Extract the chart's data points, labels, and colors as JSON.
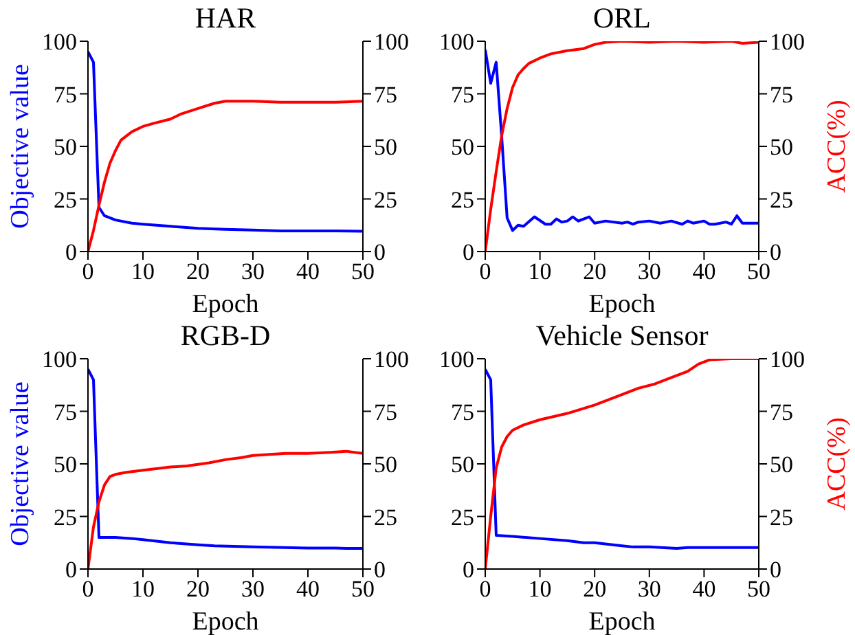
{
  "chart_data": [
    {
      "type": "line",
      "title": "HAR",
      "xlabel": "Epoch",
      "ylabel": "Objective value",
      "xlim": [
        0,
        50
      ],
      "xticks": [
        0,
        10,
        20,
        30,
        40,
        50
      ],
      "ylim": [
        0,
        100
      ],
      "yticks": [
        0,
        25,
        50,
        75,
        100
      ],
      "y2lim": [
        0,
        100
      ],
      "y2ticks": [
        0,
        25,
        50,
        75,
        100
      ],
      "series": [
        {
          "color": "#0000ff",
          "x": [
            0,
            1,
            2,
            3,
            5,
            8,
            10,
            15,
            20,
            25,
            30,
            35,
            40,
            45,
            50
          ],
          "values": [
            95,
            90,
            21,
            17,
            15,
            13.5,
            13,
            12,
            11,
            10.5,
            10.2,
            9.8,
            9.8,
            9.8,
            9.6
          ]
        },
        {
          "color": "#ff0000",
          "axis": "y2",
          "x": [
            0,
            1,
            2,
            3,
            4,
            5,
            6,
            8,
            10,
            12,
            15,
            17,
            20,
            23,
            25,
            30,
            35,
            40,
            45,
            50
          ],
          "values": [
            0,
            10,
            22,
            33,
            42,
            48,
            53,
            57,
            59.5,
            61,
            63,
            65.5,
            68,
            70.5,
            71.5,
            71.5,
            71,
            71,
            71,
            71.5
          ]
        }
      ]
    },
    {
      "type": "line",
      "title": "ORL",
      "xlabel": "Epoch",
      "y2label": "ACC(%)",
      "xlim": [
        0,
        50
      ],
      "xticks": [
        0,
        10,
        20,
        30,
        40,
        50
      ],
      "ylim": [
        0,
        100
      ],
      "yticks": [
        0,
        25,
        50,
        75,
        100
      ],
      "y2lim": [
        0,
        100
      ],
      "y2ticks": [
        0,
        25,
        50,
        75,
        100
      ],
      "series": [
        {
          "color": "#0000ff",
          "x": [
            0,
            1,
            2,
            3,
            4,
            5,
            6,
            7,
            9,
            11,
            12,
            13,
            14,
            15,
            16,
            17,
            19,
            20,
            22,
            25,
            26,
            27,
            28,
            30,
            32,
            34,
            36,
            37,
            38,
            40,
            41,
            42,
            44,
            45,
            46,
            47,
            50
          ],
          "values": [
            96,
            80,
            90,
            55,
            16,
            10,
            12.5,
            12,
            16.5,
            13,
            13,
            15.5,
            14,
            14.5,
            16.5,
            14.5,
            16.5,
            13.5,
            14.5,
            13.5,
            14,
            13,
            14,
            14.5,
            13.5,
            14.5,
            13,
            14.5,
            13.5,
            14.5,
            13,
            13,
            14,
            13,
            17,
            13.5,
            13.5
          ]
        },
        {
          "color": "#ff0000",
          "axis": "y2",
          "x": [
            0,
            1,
            2,
            3,
            4,
            5,
            6,
            7,
            8,
            10,
            12,
            15,
            18,
            20,
            22,
            25,
            30,
            35,
            40,
            45,
            47,
            50
          ],
          "values": [
            0,
            20,
            38,
            55,
            68,
            78,
            84,
            87,
            89.5,
            92,
            94,
            95.5,
            96.5,
            98.5,
            99.5,
            100,
            99.5,
            100,
            99.5,
            100,
            99,
            99.5
          ]
        }
      ]
    },
    {
      "type": "line",
      "title": "RGB-D",
      "xlabel": "Epoch",
      "ylabel": "Objective value",
      "xlim": [
        0,
        50
      ],
      "xticks": [
        0,
        10,
        20,
        30,
        40,
        50
      ],
      "ylim": [
        0,
        100
      ],
      "yticks": [
        0,
        25,
        50,
        75,
        100
      ],
      "y2lim": [
        0,
        100
      ],
      "y2ticks": [
        0,
        25,
        50,
        75,
        100
      ],
      "series": [
        {
          "color": "#0000ff",
          "x": [
            0,
            1,
            2,
            5,
            8,
            10,
            15,
            20,
            23,
            30,
            40,
            45,
            47,
            50
          ],
          "values": [
            95,
            90,
            15,
            15,
            14.5,
            14,
            12.5,
            11.5,
            11,
            10.5,
            10,
            10,
            9.8,
            9.8
          ]
        },
        {
          "color": "#ff0000",
          "axis": "y2",
          "x": [
            0,
            1,
            2,
            3,
            4,
            5,
            7,
            10,
            15,
            18,
            22,
            25,
            28,
            30,
            33,
            36,
            40,
            44,
            47,
            50
          ],
          "values": [
            0,
            20,
            32,
            40,
            44,
            45,
            46,
            47,
            48.5,
            49,
            50.5,
            52,
            53,
            54,
            54.5,
            55,
            55,
            55.5,
            56,
            55
          ]
        }
      ]
    },
    {
      "type": "line",
      "title": "Vehicle Sensor",
      "xlabel": "Epoch",
      "y2label": "ACC(%)",
      "xlim": [
        0,
        50
      ],
      "xticks": [
        0,
        10,
        20,
        30,
        40,
        50
      ],
      "ylim": [
        0,
        100
      ],
      "yticks": [
        0,
        25,
        50,
        75,
        100
      ],
      "y2lim": [
        0,
        100
      ],
      "y2ticks": [
        0,
        25,
        50,
        75,
        100
      ],
      "series": [
        {
          "color": "#0000ff",
          "x": [
            0,
            1,
            2,
            5,
            10,
            15,
            18,
            20,
            25,
            27,
            30,
            35,
            37,
            40,
            50
          ],
          "values": [
            95,
            90,
            16,
            15.5,
            14.5,
            13.5,
            12.5,
            12.5,
            11,
            10.5,
            10.5,
            9.8,
            10.2,
            10.2,
            10.2
          ]
        },
        {
          "color": "#ff0000",
          "axis": "y2",
          "x": [
            0,
            1,
            2,
            3,
            4,
            5,
            7,
            10,
            15,
            20,
            25,
            28,
            31,
            35,
            37,
            39,
            41,
            45,
            50
          ],
          "values": [
            0,
            25,
            48,
            58,
            63,
            66,
            68.5,
            71,
            74,
            78,
            83,
            86,
            88,
            92,
            94,
            97.5,
            99.5,
            100,
            100
          ]
        }
      ]
    }
  ]
}
